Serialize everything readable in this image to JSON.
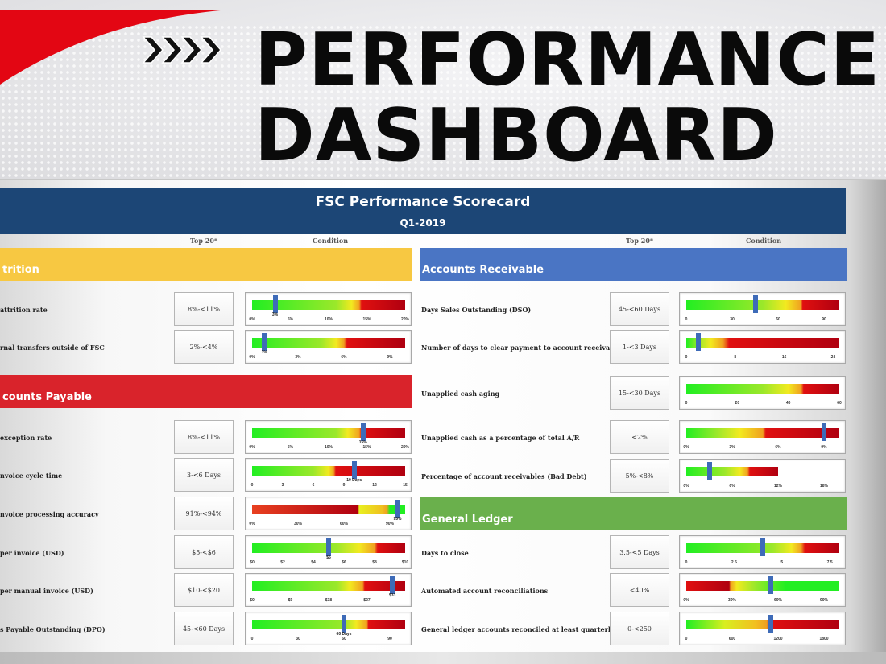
{
  "banner": {
    "title_line1": "PERFORMANCE",
    "title_line2": "DASHBOARD",
    "icon": "chevrons-right-icon",
    "accent": "#e30613"
  },
  "scorecard": {
    "title": "FSC Performance Scorecard",
    "period": "Q1-2019",
    "col_top20": "Top 20*",
    "col_condition": "Condition",
    "sections": [
      {
        "title": "trition",
        "color": "#f7c842",
        "side": "left",
        "rows": [
          {
            "label": "attrition rate",
            "top20": "8%-<11%",
            "gauge": {
              "scale": [
                0,
                20
              ],
              "ticks": [
                "0%",
                "5%",
                "10%",
                "15%",
                "20%"
              ],
              "tick_values": [
                0,
                5,
                10,
                15,
                20
              ],
              "marker": 3,
              "marker_label": "3%",
              "gradient": [
                [
                  0,
                  "#22ee22"
                ],
                [
                  11,
                  "#9be82a"
                ],
                [
                  13,
                  "#f2ea20"
                ],
                [
                  14,
                  "#f0a020"
                ],
                [
                  14.3,
                  "#e01010"
                ],
                [
                  20,
                  "#b00010"
                ]
              ]
            }
          },
          {
            "label": "rnal transfers outside of FSC",
            "top20": "2%-<4%",
            "gauge": {
              "scale": [
                0,
                10
              ],
              "ticks": [
                "0%",
                "3%",
                "6%",
                "9%"
              ],
              "tick_values": [
                0,
                3,
                6,
                9
              ],
              "marker": 0.8,
              "marker_label": "1%",
              "gradient": [
                [
                  0,
                  "#22ee22"
                ],
                [
                  4.5,
                  "#9be82a"
                ],
                [
                  5.5,
                  "#f2ea20"
                ],
                [
                  6,
                  "#f0a020"
                ],
                [
                  6.2,
                  "#e01010"
                ],
                [
                  9.8,
                  "#b00010"
                ]
              ]
            }
          }
        ]
      },
      {
        "title": "counts Payable",
        "color": "#d9232b",
        "side": "left",
        "rows": [
          {
            "label": "exception rate",
            "top20": "8%-<11%",
            "gauge": {
              "scale": [
                0,
                20
              ],
              "ticks": [
                "0%",
                "5%",
                "10%",
                "15%",
                "20%"
              ],
              "tick_values": [
                0,
                5,
                10,
                15,
                20
              ],
              "marker": 14.5,
              "marker_label": "15%",
              "gradient": [
                [
                  0,
                  "#22ee22"
                ],
                [
                  11,
                  "#9be82a"
                ],
                [
                  12.5,
                  "#f2ea20"
                ],
                [
                  14,
                  "#f0a020"
                ],
                [
                  14.3,
                  "#e01010"
                ],
                [
                  20,
                  "#b00010"
                ]
              ]
            }
          },
          {
            "label": "nvoice cycle time",
            "top20": "3-<6 Days",
            "gauge": {
              "scale": [
                0,
                15
              ],
              "ticks": [
                "0",
                "3",
                "6",
                "9",
                "12",
                "15"
              ],
              "tick_values": [
                0,
                3,
                6,
                9,
                12,
                15
              ],
              "marker": 10,
              "marker_label": "10 Days",
              "gradient": [
                [
                  0,
                  "#22ee22"
                ],
                [
                  6,
                  "#9be82a"
                ],
                [
                  7.5,
                  "#f2ea20"
                ],
                [
                  8,
                  "#f0a020"
                ],
                [
                  8.2,
                  "#e01010"
                ],
                [
                  15,
                  "#b00010"
                ]
              ]
            }
          },
          {
            "label": "nvoice processing accuracy",
            "top20": "91%-<94%",
            "gauge": {
              "scale": [
                0,
                100
              ],
              "ticks": [
                "0%",
                "30%",
                "60%",
                "90%"
              ],
              "tick_values": [
                0,
                30,
                60,
                90
              ],
              "marker": 95,
              "marker_label": "95%",
              "gradient": [
                [
                  0,
                  "#e84020"
                ],
                [
                  69,
                  "#b00010"
                ],
                [
                  70,
                  "#e8f020"
                ],
                [
                  85,
                  "#f0c020"
                ],
                [
                  88,
                  "#f0a020"
                ],
                [
                  90,
                  "#22ee22"
                ],
                [
                  100,
                  "#22ee22"
                ]
              ]
            }
          },
          {
            "label": "per invoice (USD)",
            "top20": "$5-<$6",
            "gauge": {
              "scale": [
                0,
                10
              ],
              "ticks": [
                "$0",
                "$2",
                "$4",
                "$6",
                "$8",
                "$10"
              ],
              "tick_values": [
                0,
                2,
                4,
                6,
                8,
                10
              ],
              "marker": 5,
              "marker_label": "$5",
              "gradient": [
                [
                  0,
                  "#22ee22"
                ],
                [
                  5.5,
                  "#9be82a"
                ],
                [
                  7,
                  "#f2ea20"
                ],
                [
                  8,
                  "#f0a020"
                ],
                [
                  8.2,
                  "#e01010"
                ],
                [
                  10,
                  "#b00010"
                ]
              ]
            }
          },
          {
            "label": "per manual invoice (USD)",
            "top20": "$10-<$20",
            "gauge": {
              "scale": [
                0,
                36
              ],
              "ticks": [
                "$0",
                "$9",
                "$18",
                "$27"
              ],
              "tick_values": [
                0,
                9,
                18,
                27
              ],
              "marker": 33,
              "marker_label": "$33",
              "gradient": [
                [
                  0,
                  "#22ee22"
                ],
                [
                  20,
                  "#9be82a"
                ],
                [
                  23,
                  "#f2ea20"
                ],
                [
                  26,
                  "#f0a020"
                ],
                [
                  26.5,
                  "#e01010"
                ],
                [
                  36,
                  "#b00010"
                ]
              ]
            }
          },
          {
            "label": "s Payable Outstanding (DPO)",
            "top20": "45-<60 Days",
            "gauge": {
              "scale": [
                0,
                100
              ],
              "ticks": [
                "0",
                "30",
                "60",
                "90"
              ],
              "tick_values": [
                0,
                30,
                60,
                90
              ],
              "marker": 60,
              "marker_label": "60 Days",
              "gradient": [
                [
                  0,
                  "#22ee22"
                ],
                [
                  60,
                  "#9be82a"
                ],
                [
                  68,
                  "#f2ea20"
                ],
                [
                  75,
                  "#f0a020"
                ],
                [
                  76,
                  "#e01010"
                ],
                [
                  100,
                  "#b00010"
                ]
              ]
            }
          }
        ]
      },
      {
        "title": "Accounts Receivable",
        "color": "#4a75c4",
        "side": "right",
        "rows": [
          {
            "label": "Days Sales Outstanding (DSO)",
            "top20": "45-<60 Days",
            "gauge": {
              "scale": [
                0,
                100
              ],
              "ticks": [
                "0",
                "30",
                "60",
                "90"
              ],
              "tick_values": [
                0,
                30,
                60,
                90
              ],
              "marker": 45,
              "marker_label": "",
              "gradient": [
                [
                  0,
                  "#22ee22"
                ],
                [
                  50,
                  "#9be82a"
                ],
                [
                  65,
                  "#f2ea20"
                ],
                [
                  75,
                  "#f0a020"
                ],
                [
                  76,
                  "#e01010"
                ],
                [
                  100,
                  "#b00010"
                ]
              ]
            }
          },
          {
            "label": "Number of days to clear payment to account receivables",
            "top20": "1-<3 Days",
            "gauge": {
              "scale": [
                0,
                25
              ],
              "ticks": [
                "0",
                "8",
                "16",
                "24"
              ],
              "tick_values": [
                0,
                8,
                16,
                24
              ],
              "marker": 2,
              "marker_label": "",
              "gradient": [
                [
                  0,
                  "#22ee22"
                ],
                [
                  2,
                  "#9be82a"
                ],
                [
                  4,
                  "#f2ea20"
                ],
                [
                  6,
                  "#f0a020"
                ],
                [
                  7,
                  "#e01010"
                ],
                [
                  25,
                  "#b00010"
                ]
              ]
            }
          },
          {
            "label": "Unapplied cash aging",
            "top20": "15-<30 Days",
            "gauge": {
              "scale": [
                0,
                60
              ],
              "ticks": [
                "0",
                "20",
                "40",
                "60"
              ],
              "tick_values": [
                0,
                20,
                40,
                60
              ],
              "gradient": [
                [
                  0,
                  "#22ee22"
                ],
                [
                  30,
                  "#9be82a"
                ],
                [
                  40,
                  "#f2ea20"
                ],
                [
                  45,
                  "#f0a020"
                ],
                [
                  46,
                  "#e01010"
                ],
                [
                  60,
                  "#b00010"
                ]
              ]
            }
          },
          {
            "label": "Unapplied cash as a percentage of total A/R",
            "top20": "<2%",
            "gauge": {
              "scale": [
                0,
                10
              ],
              "ticks": [
                "0%",
                "3%",
                "6%",
                "9%"
              ],
              "tick_values": [
                0,
                3,
                6,
                9
              ],
              "marker": 9,
              "marker_label": "",
              "gradient": [
                [
                  0,
                  "#22ee22"
                ],
                [
                  2,
                  "#9be82a"
                ],
                [
                  3.5,
                  "#f2ea20"
                ],
                [
                  5,
                  "#f0a020"
                ],
                [
                  5.2,
                  "#e01010"
                ],
                [
                  10,
                  "#b00010"
                ]
              ]
            }
          },
          {
            "label": "Percentage of account receivables (Bad Debt)",
            "top20": "5%-<8%",
            "gauge": {
              "scale": [
                0,
                20
              ],
              "end": 12,
              "ticks": [
                "0%",
                "6%",
                "12%",
                "18%"
              ],
              "tick_values": [
                0,
                6,
                12,
                18
              ],
              "marker": 3,
              "marker_label": "",
              "gradient": [
                [
                  0,
                  "#22ee22"
                ],
                [
                  5,
                  "#9be82a"
                ],
                [
                  7,
                  "#f2ea20"
                ],
                [
                  8,
                  "#f0a020"
                ],
                [
                  8.3,
                  "#e01010"
                ],
                [
                  12,
                  "#b00010"
                ]
              ]
            }
          }
        ]
      },
      {
        "title": "General Ledger",
        "color": "#6ab04c",
        "side": "right",
        "rows": [
          {
            "label": "Days to close",
            "top20": "3.5-<5 Days",
            "gauge": {
              "scale": [
                0,
                8
              ],
              "ticks": [
                "0",
                "2.5",
                "5",
                "7.5"
              ],
              "tick_values": [
                0,
                2.5,
                5,
                7.5
              ],
              "marker": 4,
              "marker_label": "",
              "gradient": [
                [
                  0,
                  "#22ee22"
                ],
                [
                  4.5,
                  "#9be82a"
                ],
                [
                  5.5,
                  "#f2ea20"
                ],
                [
                  6,
                  "#f0a020"
                ],
                [
                  6.2,
                  "#e01010"
                ],
                [
                  8,
                  "#b00010"
                ]
              ]
            }
          },
          {
            "label": "Automated account reconciliations",
            "top20": "<40%",
            "gauge": {
              "scale": [
                0,
                100
              ],
              "ticks": [
                "0%",
                "30%",
                "60%",
                "90%"
              ],
              "tick_values": [
                0,
                30,
                60,
                90
              ],
              "marker": 55,
              "marker_label": "",
              "gradient": [
                [
                  0,
                  "#e01010"
                ],
                [
                  28,
                  "#b00010"
                ],
                [
                  29,
                  "#f0a020"
                ],
                [
                  33,
                  "#f2ea20"
                ],
                [
                  45,
                  "#9be82a"
                ],
                [
                  65,
                  "#22ee22"
                ],
                [
                  100,
                  "#22ee22"
                ]
              ]
            }
          },
          {
            "label": "General ledger accounts reconciled at least quarterly",
            "top20": "0-<250",
            "gauge": {
              "scale": [
                0,
                2000
              ],
              "ticks": [
                "0",
                "600",
                "1200",
                "1800"
              ],
              "tick_values": [
                0,
                600,
                1200,
                1800
              ],
              "marker": 1100,
              "marker_label": "",
              "gradient": [
                [
                  0,
                  "#22ee22"
                ],
                [
                  500,
                  "#d8ee20"
                ],
                [
                  900,
                  "#f2c020"
                ],
                [
                  1050,
                  "#f0a020"
                ],
                [
                  1100,
                  "#e01010"
                ],
                [
                  2000,
                  "#b00010"
                ]
              ]
            }
          }
        ]
      }
    ]
  }
}
